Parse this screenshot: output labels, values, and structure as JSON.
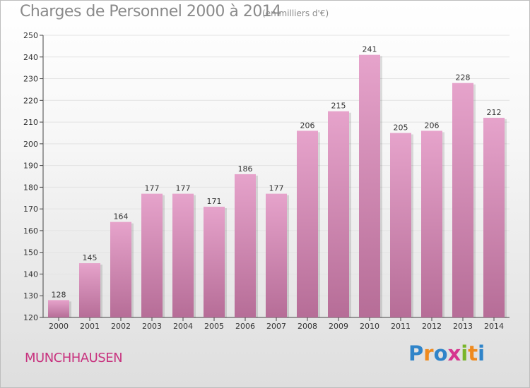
{
  "header": {
    "title": "Charges de Personnel 2000 à 2014",
    "subtitle": "(en milliers d'€)"
  },
  "footer": {
    "place": "MUNCHHAUSEN",
    "logo_text": "Proxiti"
  },
  "colors": {
    "bar_top": "#e6a3cb",
    "bar_bottom": "#b66d97",
    "grid": "#e3e3e3",
    "place": "#c8337f"
  },
  "chart_data": {
    "type": "bar",
    "categories": [
      "2000",
      "2001",
      "2002",
      "2003",
      "2004",
      "2005",
      "2006",
      "2007",
      "2008",
      "2009",
      "2010",
      "2011",
      "2012",
      "2013",
      "2014"
    ],
    "values": [
      128,
      145,
      164,
      177,
      177,
      171,
      186,
      177,
      206,
      215,
      241,
      205,
      206,
      228,
      212
    ],
    "ylim": [
      120,
      250
    ],
    "yticks": [
      120,
      130,
      140,
      150,
      160,
      170,
      180,
      190,
      200,
      210,
      220,
      230,
      240,
      250
    ],
    "grid": true,
    "data_labels": true
  }
}
